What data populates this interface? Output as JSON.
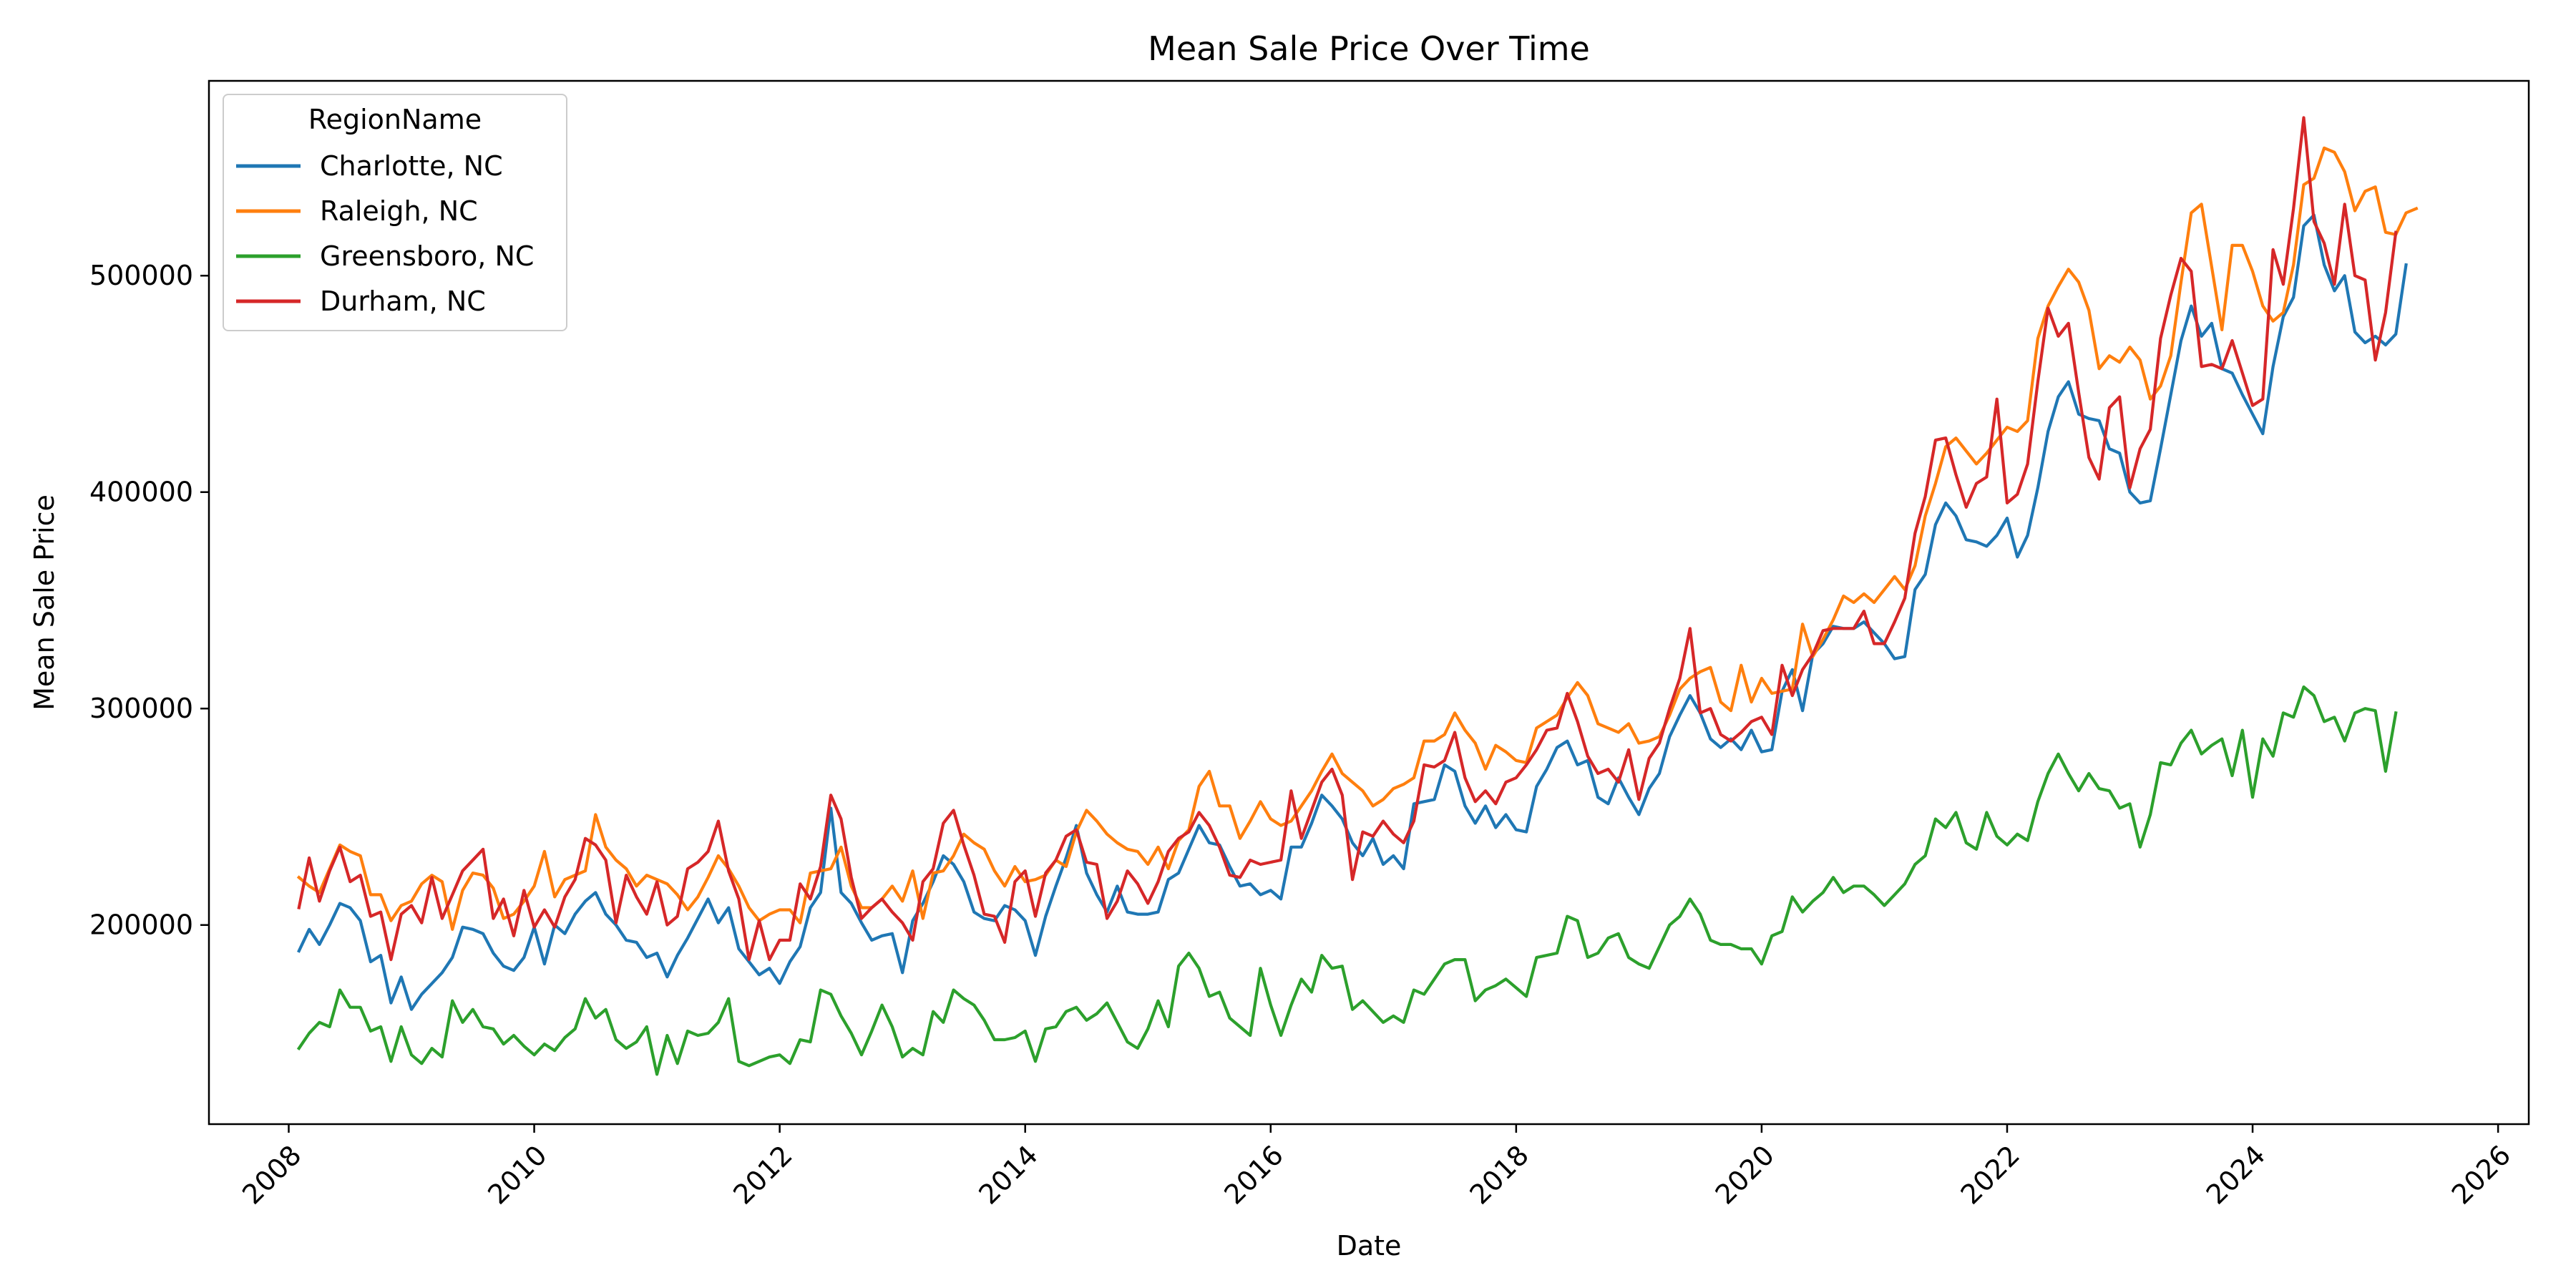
{
  "chart_data": {
    "type": "line",
    "title": "Mean Sale Price Over Time",
    "xlabel": "Date",
    "ylabel": "Mean Sale Price",
    "xlim": [
      2007.35,
      2026.25
    ],
    "ylim": [
      108000,
      590000
    ],
    "xticks": [
      2008,
      2010,
      2012,
      2014,
      2016,
      2018,
      2020,
      2022,
      2024,
      2026
    ],
    "xtick_labels": [
      "2008",
      "2010",
      "2012",
      "2014",
      "2016",
      "2018",
      "2020",
      "2022",
      "2024",
      "2026"
    ],
    "yticks": [
      200000,
      300000,
      400000,
      500000
    ],
    "ytick_labels": [
      "200000",
      "300000",
      "400000",
      "500000"
    ],
    "grid": false,
    "legend": {
      "title": "RegionName",
      "placement": "top-left"
    },
    "x_start": "2008-02",
    "x_end": "2025-04",
    "frequency": "monthly",
    "series": [
      {
        "name": "Charlotte, NC",
        "color": "#1f77b4",
        "values": [
          188000,
          198000,
          191000,
          200000,
          210000,
          208000,
          202000,
          183000,
          186000,
          164000,
          176000,
          161000,
          168000,
          173000,
          178000,
          185000,
          199000,
          198000,
          196000,
          187000,
          181000,
          179000,
          185000,
          199000,
          182000,
          200000,
          196000,
          205000,
          211000,
          215000,
          205000,
          200000,
          193000,
          192000,
          185000,
          187000,
          176000,
          186000,
          194000,
          203000,
          212000,
          201000,
          208000,
          189000,
          183000,
          177000,
          180000,
          173000,
          183000,
          190000,
          208000,
          215000,
          254000,
          215000,
          210000,
          201000,
          193000,
          195000,
          196000,
          178000,
          202000,
          210000,
          220000,
          232000,
          228000,
          220000,
          206000,
          203000,
          202000,
          209000,
          207000,
          202000,
          186000,
          204000,
          218000,
          231000,
          246000,
          224000,
          214000,
          206000,
          218000,
          206000,
          205000,
          205000,
          206000,
          221000,
          224000,
          235000,
          246000,
          238000,
          237000,
          227000,
          218000,
          219000,
          214000,
          216000,
          212000,
          236000,
          236000,
          247000,
          260000,
          255000,
          249000,
          238000,
          232000,
          240000,
          228000,
          232000,
          226000,
          256000,
          257000,
          258000,
          274000,
          271000,
          255000,
          247000,
          255000,
          245000,
          251000,
          244000,
          243000,
          264000,
          272000,
          282000,
          285000,
          274000,
          276000,
          259000,
          256000,
          268000,
          259000,
          251000,
          263000,
          270000,
          287000,
          297000,
          306000,
          298000,
          286000,
          282000,
          286000,
          281000,
          290000,
          280000,
          281000,
          308000,
          318000,
          299000,
          325000,
          330000,
          338000,
          337000,
          337000,
          340000,
          335000,
          330000,
          323000,
          324000,
          355000,
          362000,
          385000,
          395000,
          389000,
          378000,
          377000,
          375000,
          380000,
          388000,
          370000,
          380000,
          402000,
          428000,
          444000,
          451000,
          436000,
          434000,
          433000,
          420000,
          418000,
          400000,
          395000,
          396000,
          420000,
          445000,
          470000,
          486000,
          472000,
          478000,
          457000,
          455000,
          445000,
          436000,
          427000,
          458000,
          481000,
          490000,
          523000,
          528000,
          505000,
          493000,
          500000,
          474000,
          469000,
          472000,
          468000,
          473000,
          505000
        ]
      },
      {
        "name": "Raleigh, NC",
        "color": "#ff7f0e",
        "values": [
          222000,
          218000,
          215000,
          226000,
          237000,
          234000,
          232000,
          214000,
          214000,
          202000,
          209000,
          211000,
          219000,
          223000,
          220000,
          198000,
          216000,
          224000,
          223000,
          217000,
          203000,
          205000,
          211000,
          218000,
          234000,
          213000,
          221000,
          223000,
          225000,
          251000,
          236000,
          230000,
          226000,
          218000,
          223000,
          221000,
          219000,
          214000,
          207000,
          213000,
          222000,
          232000,
          226000,
          218000,
          208000,
          202000,
          205000,
          207000,
          207000,
          201000,
          224000,
          225000,
          226000,
          236000,
          218000,
          208000,
          208000,
          212000,
          218000,
          211000,
          225000,
          203000,
          224000,
          225000,
          232000,
          242000,
          238000,
          235000,
          225000,
          218000,
          227000,
          220000,
          221000,
          223000,
          230000,
          227000,
          243000,
          253000,
          248000,
          242000,
          238000,
          235000,
          234000,
          228000,
          236000,
          226000,
          239000,
          244000,
          264000,
          271000,
          255000,
          255000,
          240000,
          248000,
          257000,
          249000,
          246000,
          248000,
          255000,
          262000,
          271000,
          279000,
          270000,
          266000,
          262000,
          255000,
          258000,
          263000,
          265000,
          268000,
          285000,
          285000,
          288000,
          298000,
          290000,
          284000,
          272000,
          283000,
          280000,
          276000,
          275000,
          291000,
          294000,
          297000,
          305000,
          312000,
          306000,
          293000,
          291000,
          289000,
          293000,
          284000,
          285000,
          287000,
          297000,
          309000,
          314000,
          317000,
          319000,
          303000,
          299000,
          320000,
          303000,
          314000,
          307000,
          308000,
          309000,
          339000,
          324000,
          332000,
          341000,
          352000,
          349000,
          353000,
          349000,
          355000,
          361000,
          355000,
          366000,
          389000,
          404000,
          421000,
          425000,
          419000,
          413000,
          418000,
          424000,
          430000,
          428000,
          433000,
          471000,
          486000,
          495000,
          503000,
          497000,
          484000,
          457000,
          463000,
          460000,
          467000,
          461000,
          443000,
          449000,
          463000,
          497000,
          529000,
          533000,
          504000,
          475000,
          514000,
          514000,
          502000,
          486000,
          479000,
          483000,
          505000,
          542000,
          545000,
          559000,
          557000,
          548000,
          530000,
          539000,
          541000,
          520000,
          519000,
          529000,
          531000
        ]
      },
      {
        "name": "Greensboro, NC",
        "color": "#2ca02c",
        "values": [
          143000,
          150000,
          155000,
          153000,
          170000,
          162000,
          162000,
          151000,
          153000,
          137000,
          153000,
          140000,
          136000,
          143000,
          139000,
          165000,
          155000,
          161000,
          153000,
          152000,
          145000,
          149000,
          144000,
          140000,
          145000,
          142000,
          148000,
          152000,
          166000,
          157000,
          161000,
          147000,
          143000,
          146000,
          153000,
          131000,
          149000,
          136000,
          151000,
          149000,
          150000,
          155000,
          166000,
          137000,
          135000,
          137000,
          139000,
          140000,
          136000,
          147000,
          146000,
          170000,
          168000,
          158000,
          150000,
          140000,
          151000,
          163000,
          153000,
          139000,
          143000,
          140000,
          160000,
          155000,
          170000,
          166000,
          163000,
          156000,
          147000,
          147000,
          148000,
          151000,
          137000,
          152000,
          153000,
          160000,
          162000,
          156000,
          159000,
          164000,
          155000,
          146000,
          143000,
          152000,
          165000,
          153000,
          181000,
          187000,
          180000,
          167000,
          169000,
          157000,
          153000,
          149000,
          180000,
          163000,
          149000,
          163000,
          175000,
          169000,
          186000,
          180000,
          181000,
          161000,
          165000,
          160000,
          155000,
          158000,
          155000,
          170000,
          168000,
          175000,
          182000,
          184000,
          184000,
          165000,
          170000,
          172000,
          175000,
          171000,
          167000,
          185000,
          186000,
          187000,
          204000,
          202000,
          185000,
          187000,
          194000,
          196000,
          185000,
          182000,
          180000,
          190000,
          200000,
          204000,
          212000,
          205000,
          193000,
          191000,
          191000,
          189000,
          189000,
          182000,
          195000,
          197000,
          213000,
          206000,
          211000,
          215000,
          222000,
          215000,
          218000,
          218000,
          214000,
          209000,
          214000,
          219000,
          228000,
          232000,
          249000,
          245000,
          252000,
          238000,
          235000,
          252000,
          241000,
          237000,
          242000,
          239000,
          257000,
          270000,
          279000,
          270000,
          262000,
          270000,
          263000,
          262000,
          254000,
          256000,
          236000,
          251000,
          275000,
          274000,
          284000,
          290000,
          279000,
          283000,
          286000,
          269000,
          290000,
          259000,
          286000,
          278000,
          298000,
          296000,
          310000,
          306000,
          294000,
          296000,
          285000,
          298000,
          300000,
          299000,
          271000,
          298000
        ]
      },
      {
        "name": "Durham, NC",
        "color": "#d62728",
        "values": [
          208000,
          231000,
          211000,
          225000,
          236000,
          220000,
          223000,
          204000,
          206000,
          184000,
          205000,
          209000,
          201000,
          222000,
          203000,
          214000,
          225000,
          230000,
          235000,
          203000,
          212000,
          195000,
          216000,
          199000,
          207000,
          199000,
          213000,
          221000,
          240000,
          237000,
          230000,
          201000,
          223000,
          213000,
          205000,
          220000,
          200000,
          204000,
          226000,
          229000,
          234000,
          248000,
          225000,
          212000,
          184000,
          202000,
          184000,
          193000,
          193000,
          219000,
          212000,
          227000,
          260000,
          249000,
          222000,
          203000,
          208000,
          212000,
          206000,
          201000,
          193000,
          220000,
          226000,
          247000,
          253000,
          237000,
          223000,
          205000,
          204000,
          192000,
          220000,
          225000,
          204000,
          224000,
          230000,
          241000,
          244000,
          229000,
          228000,
          203000,
          211000,
          225000,
          219000,
          210000,
          220000,
          234000,
          240000,
          243000,
          252000,
          246000,
          236000,
          223000,
          222000,
          230000,
          228000,
          229000,
          230000,
          262000,
          240000,
          253000,
          266000,
          272000,
          260000,
          221000,
          243000,
          241000,
          248000,
          242000,
          238000,
          248000,
          274000,
          273000,
          276000,
          289000,
          268000,
          257000,
          262000,
          256000,
          266000,
          268000,
          274000,
          281000,
          290000,
          291000,
          307000,
          294000,
          278000,
          270000,
          272000,
          266000,
          281000,
          258000,
          277000,
          284000,
          300000,
          314000,
          337000,
          298000,
          300000,
          288000,
          285000,
          289000,
          294000,
          296000,
          288000,
          320000,
          306000,
          318000,
          325000,
          336000,
          337000,
          337000,
          337000,
          345000,
          330000,
          330000,
          340000,
          351000,
          381000,
          398000,
          424000,
          425000,
          408000,
          393000,
          404000,
          407000,
          443000,
          395000,
          399000,
          413000,
          451000,
          485000,
          472000,
          478000,
          446000,
          416000,
          406000,
          439000,
          444000,
          402000,
          420000,
          429000,
          471000,
          491000,
          508000,
          502000,
          458000,
          459000,
          457000,
          470000,
          455000,
          440000,
          443000,
          512000,
          496000,
          531000,
          573000,
          525000,
          515000,
          496000,
          533000,
          500000,
          498000,
          461000,
          483000,
          520000
        ]
      }
    ]
  }
}
